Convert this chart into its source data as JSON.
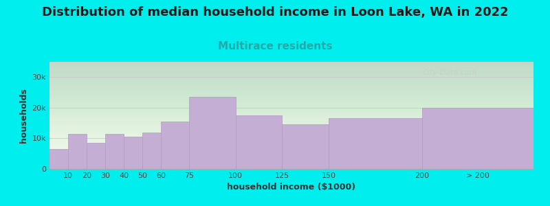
{
  "title": "Distribution of median household income in Loon Lake, WA in 2022",
  "subtitle": "Multirace residents",
  "xlabel": "household income ($1000)",
  "ylabel": "households",
  "background_color": "#00EEEE",
  "plot_bg_color": "#f0f8ee",
  "bar_color": "#c4aed4",
  "bar_edge_color": "#b09cc0",
  "categories": [
    "10",
    "20",
    "30",
    "40",
    "50",
    "60",
    "75",
    "100",
    "125",
    "150",
    "200",
    "> 200"
  ],
  "left_edges": [
    0,
    10,
    20,
    30,
    40,
    50,
    60,
    75,
    100,
    125,
    150,
    200
  ],
  "widths": [
    10,
    10,
    10,
    10,
    10,
    10,
    15,
    25,
    25,
    25,
    50,
    60
  ],
  "values": [
    6500,
    11500,
    8500,
    11500,
    10500,
    11800,
    15500,
    23500,
    17500,
    14500,
    16500,
    20000
  ],
  "ylim": [
    0,
    35000
  ],
  "xlim": [
    0,
    260
  ],
  "yticks": [
    0,
    10000,
    20000,
    30000
  ],
  "ytick_labels": [
    "0",
    "10k",
    "20k",
    "30k"
  ],
  "xtick_positions": [
    10,
    20,
    30,
    40,
    50,
    60,
    75,
    100,
    125,
    150,
    200,
    230
  ],
  "xtick_labels": [
    "10",
    "20",
    "30",
    "40",
    "50",
    "60",
    "75",
    "100",
    "125",
    "150",
    "200",
    "> 200"
  ],
  "title_fontsize": 13,
  "subtitle_fontsize": 11,
  "subtitle_color": "#22aaaa",
  "axis_label_fontsize": 9,
  "tick_fontsize": 8,
  "watermark": "City-Data.com"
}
